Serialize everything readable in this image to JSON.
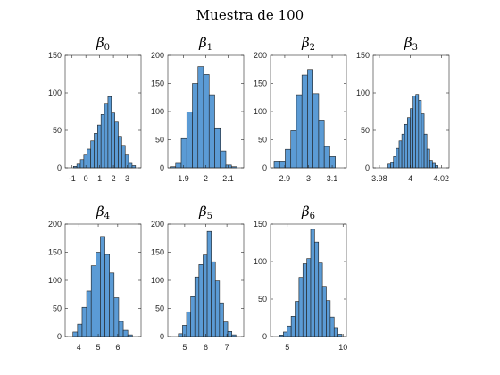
{
  "suptitle": "Muestra de 100",
  "colors": {
    "bar_fill": "#5b9bd5",
    "bar_edge": "#1f1f1f",
    "axis": "#262626"
  },
  "chart_data": [
    {
      "type": "histogram",
      "title": "β0",
      "title_base": "β",
      "title_sub": "0",
      "xlim": [
        -1.5,
        4
      ],
      "xticks": [
        -1,
        0,
        1,
        2,
        3
      ],
      "ylim": [
        0,
        150
      ],
      "yticks": [
        0,
        50,
        100,
        150
      ],
      "bin_start": -0.9,
      "bin_width": 0.25,
      "counts": [
        2,
        5,
        11,
        17,
        25,
        36,
        46,
        57,
        71,
        86,
        95,
        73,
        61,
        42,
        30,
        17,
        6,
        3
      ]
    },
    {
      "type": "histogram",
      "title": "β1",
      "title_base": "β",
      "title_sub": "1",
      "xlim": [
        1.83,
        2.17
      ],
      "xticks": [
        1.9,
        2,
        2.1
      ],
      "ylim": [
        0,
        200
      ],
      "yticks": [
        0,
        50,
        100,
        150,
        200
      ],
      "bin_start": 1.84,
      "bin_width": 0.025,
      "counts": [
        2,
        8,
        52,
        99,
        150,
        180,
        166,
        130,
        71,
        30,
        5,
        2
      ]
    },
    {
      "type": "histogram",
      "title": "β2",
      "title_base": "β",
      "title_sub": "2",
      "xlim": [
        2.84,
        3.16
      ],
      "xticks": [
        2.9,
        3,
        3.1
      ],
      "ylim": [
        0,
        200
      ],
      "yticks": [
        0,
        50,
        100,
        150,
        200
      ],
      "bin_start": 2.855,
      "bin_width": 0.0235,
      "counts": [
        12,
        12,
        33,
        66,
        130,
        165,
        175,
        132,
        85,
        38,
        20
      ]
    },
    {
      "type": "histogram",
      "title": "β3",
      "title_base": "β",
      "title_sub": "3",
      "xlim": [
        3.976,
        4.025
      ],
      "xticks": [
        3.98,
        4,
        4.02
      ],
      "ylim": [
        0,
        150
      ],
      "yticks": [
        0,
        50,
        100,
        150
      ],
      "bin_start": 3.9855,
      "bin_width": 0.0018,
      "counts": [
        5,
        7,
        15,
        26,
        36,
        45,
        58,
        67,
        79,
        96,
        98,
        90,
        72,
        45,
        25,
        10,
        6,
        3
      ]
    },
    {
      "type": "histogram",
      "title": "β4",
      "title_base": "β",
      "title_sub": "4",
      "xlim": [
        3.3,
        7.2
      ],
      "xticks": [
        4,
        5,
        6
      ],
      "ylim": [
        0,
        200
      ],
      "yticks": [
        0,
        50,
        100,
        150,
        200
      ],
      "bin_start": 3.7,
      "bin_width": 0.235,
      "counts": [
        8,
        22,
        52,
        81,
        126,
        150,
        178,
        146,
        113,
        69,
        27,
        11,
        3
      ]
    },
    {
      "type": "histogram",
      "title": "β5",
      "title_base": "β",
      "title_sub": "5",
      "xlim": [
        4.2,
        7.8
      ],
      "xticks": [
        5,
        6,
        7
      ],
      "ylim": [
        0,
        200
      ],
      "yticks": [
        0,
        50,
        100,
        150,
        200
      ],
      "bin_start": 4.7,
      "bin_width": 0.195,
      "counts": [
        5,
        20,
        44,
        71,
        106,
        128,
        145,
        187,
        133,
        99,
        60,
        26,
        9,
        3
      ]
    },
    {
      "type": "histogram",
      "title": "β6",
      "title_base": "β",
      "title_sub": "6",
      "xlim": [
        3.5,
        10.3
      ],
      "xticks": [
        5,
        10
      ],
      "ylim": [
        0,
        150
      ],
      "yticks": [
        0,
        50,
        100,
        150
      ],
      "bin_start": 4.3,
      "bin_width": 0.35,
      "counts": [
        2,
        6,
        14,
        27,
        47,
        79,
        97,
        104,
        143,
        126,
        98,
        67,
        48,
        26,
        12,
        3
      ]
    }
  ]
}
